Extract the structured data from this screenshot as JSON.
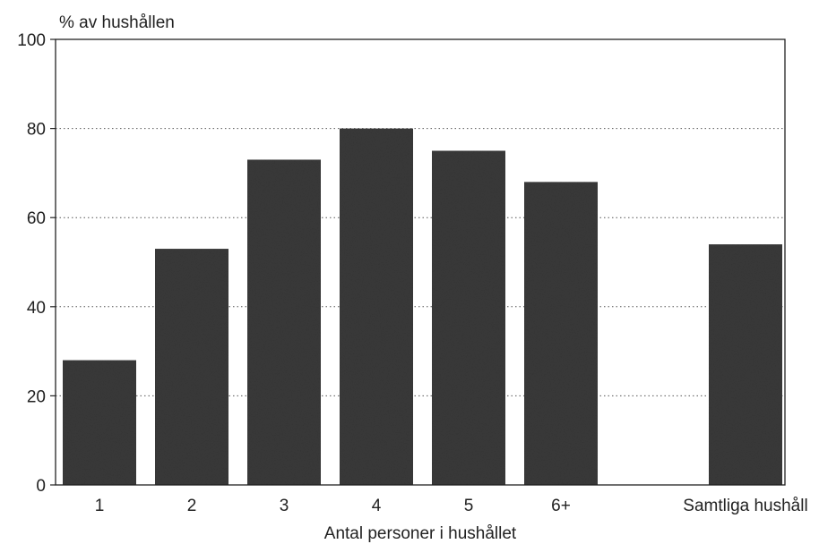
{
  "chart_data": {
    "type": "bar",
    "title": "",
    "ylabel": "% av hushållen",
    "xlabel": "Antal personer i hushållet",
    "categories": [
      "1",
      "2",
      "3",
      "4",
      "5",
      "6+",
      "Samtliga hushåll"
    ],
    "values": [
      28,
      53,
      73,
      80,
      75,
      68,
      54
    ],
    "ylim": [
      0,
      100
    ],
    "yticks": [
      "0",
      "20",
      "40",
      "60",
      "80",
      "100"
    ],
    "grid": "horizontal dotted",
    "bar_color": "#3a3a3a"
  }
}
